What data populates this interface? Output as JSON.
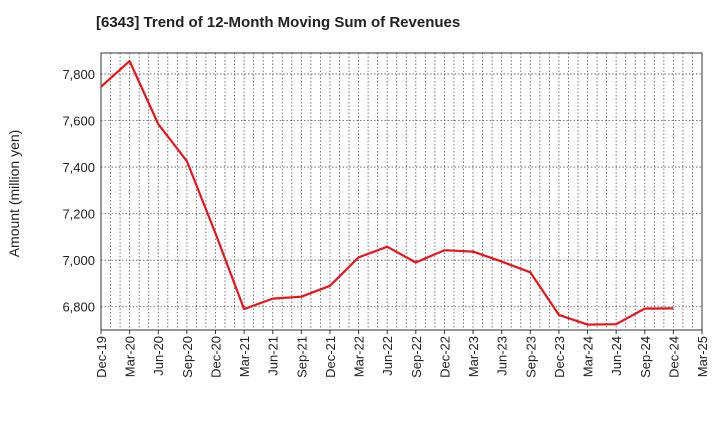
{
  "chart_data": {
    "type": "line",
    "title": "[6343]  Trend of 12-Month Moving Sum of Revenues",
    "xlabel": "",
    "ylabel": "Amount (million yen)",
    "ylim": [
      6700,
      7890
    ],
    "yticks": [
      6800,
      7000,
      7200,
      7400,
      7600,
      7800
    ],
    "ytick_labels": [
      "6,800",
      "7,000",
      "7,200",
      "7,400",
      "7,600",
      "7,800"
    ],
    "grid": true,
    "legend": "none",
    "categories": [
      "Dec-19",
      "Mar-20",
      "Jun-20",
      "Sep-20",
      "Dec-20",
      "Mar-21",
      "Jun-21",
      "Sep-21",
      "Dec-21",
      "Mar-22",
      "Jun-22",
      "Sep-22",
      "Dec-22",
      "Mar-23",
      "Jun-23",
      "Sep-23",
      "Dec-23",
      "Mar-24",
      "Jun-24",
      "Sep-24",
      "Dec-24",
      "Mar-25"
    ],
    "series": [
      {
        "color": "#e8141b",
        "values": [
          7745,
          7855,
          7585,
          7425,
          7115,
          6790,
          6835,
          6843,
          6890,
          7012,
          7058,
          6990,
          7043,
          7037,
          6994,
          6948,
          6765,
          6723,
          6725,
          6792,
          6793,
          null
        ]
      }
    ]
  }
}
